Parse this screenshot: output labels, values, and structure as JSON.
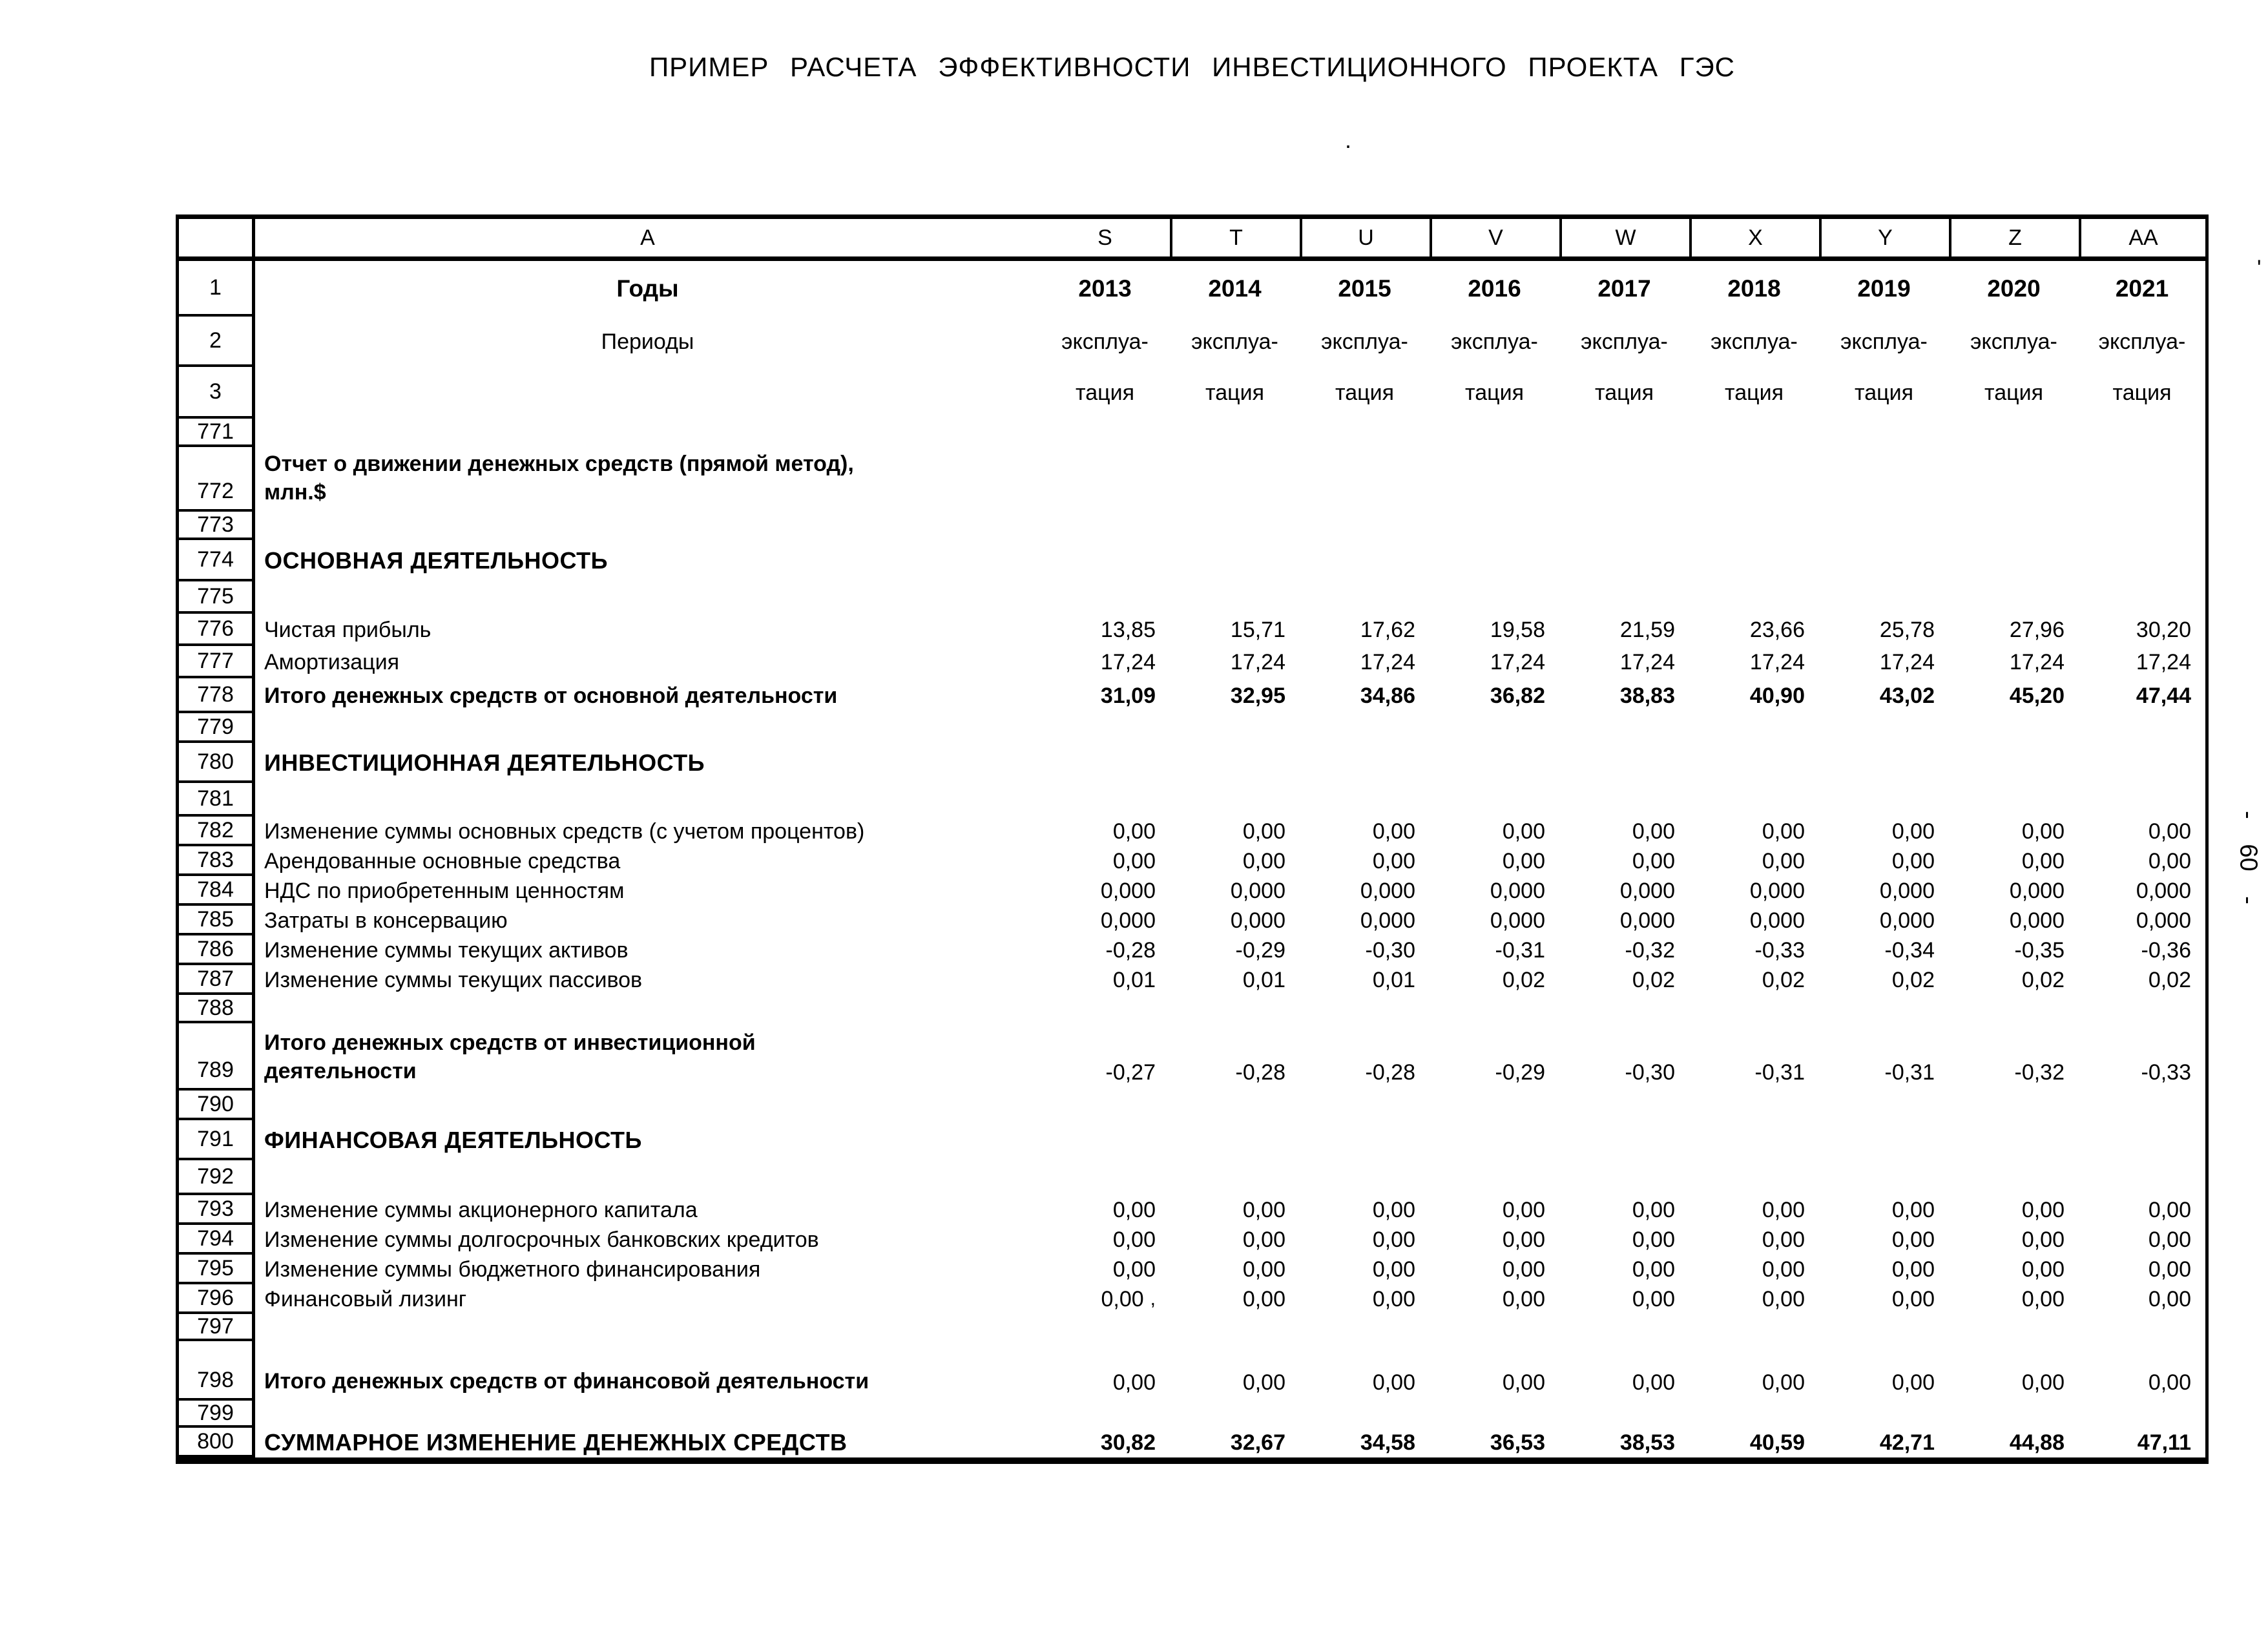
{
  "page": {
    "title": "ПРИМЕР РАСЧЕТА ЭФФЕКТИВНОСТИ ИНВЕСТИЦИОННОГО ПРОЕКТА ГЭС",
    "side_page_number": "- 60 -",
    "title_artifact": ".",
    "corner_artifact": "'"
  },
  "table": {
    "corner_label": "",
    "label_column_letter": "A",
    "data_column_letters": [
      "S",
      "T",
      "U",
      "V",
      "W",
      "X",
      "Y",
      "Z",
      "AA"
    ],
    "years_row": {
      "num": "1",
      "label": "Годы",
      "values": [
        "2013",
        "2014",
        "2015",
        "2016",
        "2017",
        "2018",
        "2019",
        "2020",
        "2021"
      ]
    },
    "periods_row": {
      "num": "2",
      "label": "Периоды",
      "values": [
        "эксплуа-",
        "эксплуа-",
        "эксплуа-",
        "эксплуа-",
        "эксплуа-",
        "эксплуа-",
        "эксплуа-",
        "эксплуа-",
        "эксплуа-"
      ]
    },
    "periods_row2": {
      "num": "3",
      "label": "",
      "values": [
        "тация",
        "тация",
        "тация",
        "тация",
        "тация",
        "тация",
        "тация",
        "тация",
        "тация"
      ]
    },
    "rows": [
      {
        "num": "771",
        "label": "",
        "values": []
      },
      {
        "num": "772",
        "label": "Отчет о движении денежных средств (прямой метод),\nмлн.$",
        "values": [],
        "bold_label": true,
        "tall": true
      },
      {
        "num": "773",
        "label": "",
        "values": []
      },
      {
        "num": "774",
        "label": "ОСНОВНАЯ ДЕЯТЕЛЬНОСТЬ",
        "values": [],
        "bold_label": true,
        "section": true
      },
      {
        "num": "775",
        "label": "",
        "values": []
      },
      {
        "num": "776",
        "label": "Чистая прибыль",
        "values": [
          "13,85",
          "15,71",
          "17,62",
          "19,58",
          "21,59",
          "23,66",
          "25,78",
          "27,96",
          "30,20"
        ]
      },
      {
        "num": "777",
        "label": "Амортизация",
        "values": [
          "17,24",
          "17,24",
          "17,24",
          "17,24",
          "17,24",
          "17,24",
          "17,24",
          "17,24",
          "17,24"
        ]
      },
      {
        "num": "778",
        "label": "Итого денежных средств от основной деятельности",
        "values": [
          "31,09",
          "32,95",
          "34,86",
          "36,82",
          "38,83",
          "40,90",
          "43,02",
          "45,20",
          "47,44"
        ],
        "bold_label": true,
        "bold_values": true
      },
      {
        "num": "779",
        "label": "",
        "values": []
      },
      {
        "num": "780",
        "label": "ИНВЕСТИЦИОННАЯ ДЕЯТЕЛЬНОСТЬ",
        "values": [],
        "bold_label": true,
        "section": true
      },
      {
        "num": "781",
        "label": "",
        "values": []
      },
      {
        "num": "782",
        "label": "Изменение суммы основных средств (с учетом процентов)",
        "values": [
          "0,00",
          "0,00",
          "0,00",
          "0,00",
          "0,00",
          "0,00",
          "0,00",
          "0,00",
          "0,00"
        ]
      },
      {
        "num": "783",
        "label": "Арендованные основные средства",
        "values": [
          "0,00",
          "0,00",
          "0,00",
          "0,00",
          "0,00",
          "0,00",
          "0,00",
          "0,00",
          "0,00"
        ]
      },
      {
        "num": "784",
        "label": "НДС по приобретенным ценностям",
        "values": [
          "0,000",
          "0,000",
          "0,000",
          "0,000",
          "0,000",
          "0,000",
          "0,000",
          "0,000",
          "0,000"
        ]
      },
      {
        "num": "785",
        "label": "Затраты в консервацию",
        "values": [
          "0,000",
          "0,000",
          "0,000",
          "0,000",
          "0,000",
          "0,000",
          "0,000",
          "0,000",
          "0,000"
        ]
      },
      {
        "num": "786",
        "label": "Изменение суммы текущих активов",
        "values": [
          "-0,28",
          "-0,29",
          "-0,30",
          "-0,31",
          "-0,32",
          "-0,33",
          "-0,34",
          "-0,35",
          "-0,36"
        ]
      },
      {
        "num": "787",
        "label": "Изменение суммы текущих пассивов",
        "values": [
          "0,01",
          "0,01",
          "0,01",
          "0,02",
          "0,02",
          "0,02",
          "0,02",
          "0,02",
          "0,02"
        ]
      },
      {
        "num": "788",
        "label": "",
        "values": []
      },
      {
        "num": "789",
        "label": "Итого денежных средств от инвестиционной\nдеятельности",
        "values": [
          "-0,27",
          "-0,28",
          "-0,28",
          "-0,29",
          "-0,30",
          "-0,31",
          "-0,31",
          "-0,32",
          "-0,33"
        ],
        "bold_label": true,
        "tall": true
      },
      {
        "num": "790",
        "label": "",
        "values": []
      },
      {
        "num": "791",
        "label": "ФИНАНСОВАЯ ДЕЯТЕЛЬНОСТЬ",
        "values": [],
        "bold_label": true,
        "section": true
      },
      {
        "num": "792",
        "label": "",
        "values": []
      },
      {
        "num": "793",
        "label": "Изменение суммы акционерного капитала",
        "values": [
          "0,00",
          "0,00",
          "0,00",
          "0,00",
          "0,00",
          "0,00",
          "0,00",
          "0,00",
          "0,00"
        ]
      },
      {
        "num": "794",
        "label": "Изменение суммы долгосрочных банковских кредитов",
        "values": [
          "0,00",
          "0,00",
          "0,00",
          "0,00",
          "0,00",
          "0,00",
          "0,00",
          "0,00",
          "0,00"
        ]
      },
      {
        "num": "795",
        "label": "Изменение суммы бюджетного финансирования",
        "values": [
          "0,00",
          "0,00",
          "0,00",
          "0,00",
          "0,00",
          "0,00",
          "0,00",
          "0,00",
          "0,00"
        ]
      },
      {
        "num": "796",
        "label": "Финансовый лизинг",
        "values": [
          "0,00",
          "0,00",
          "0,00",
          "0,00",
          "0,00",
          "0,00",
          "0,00",
          "0,00",
          "0,00"
        ],
        "first_value_mark": ","
      },
      {
        "num": "797",
        "label": "",
        "values": []
      },
      {
        "num": "798",
        "label": "Итого денежных средств от финансовой деятельности",
        "values": [
          "0,00",
          "0,00",
          "0,00",
          "0,00",
          "0,00",
          "0,00",
          "0,00",
          "0,00",
          "0,00"
        ],
        "bold_label": true,
        "tall": true
      },
      {
        "num": "799",
        "label": "",
        "values": []
      },
      {
        "num": "800",
        "label": "СУММАРНОЕ ИЗМЕНЕНИЕ ДЕНЕЖНЫХ СРЕДСТВ",
        "values": [
          "30,82",
          "32,67",
          "34,58",
          "36,53",
          "38,53",
          "40,59",
          "42,71",
          "44,88",
          "47,11"
        ],
        "bold_label": true,
        "bold_values": true,
        "section": true
      }
    ]
  }
}
